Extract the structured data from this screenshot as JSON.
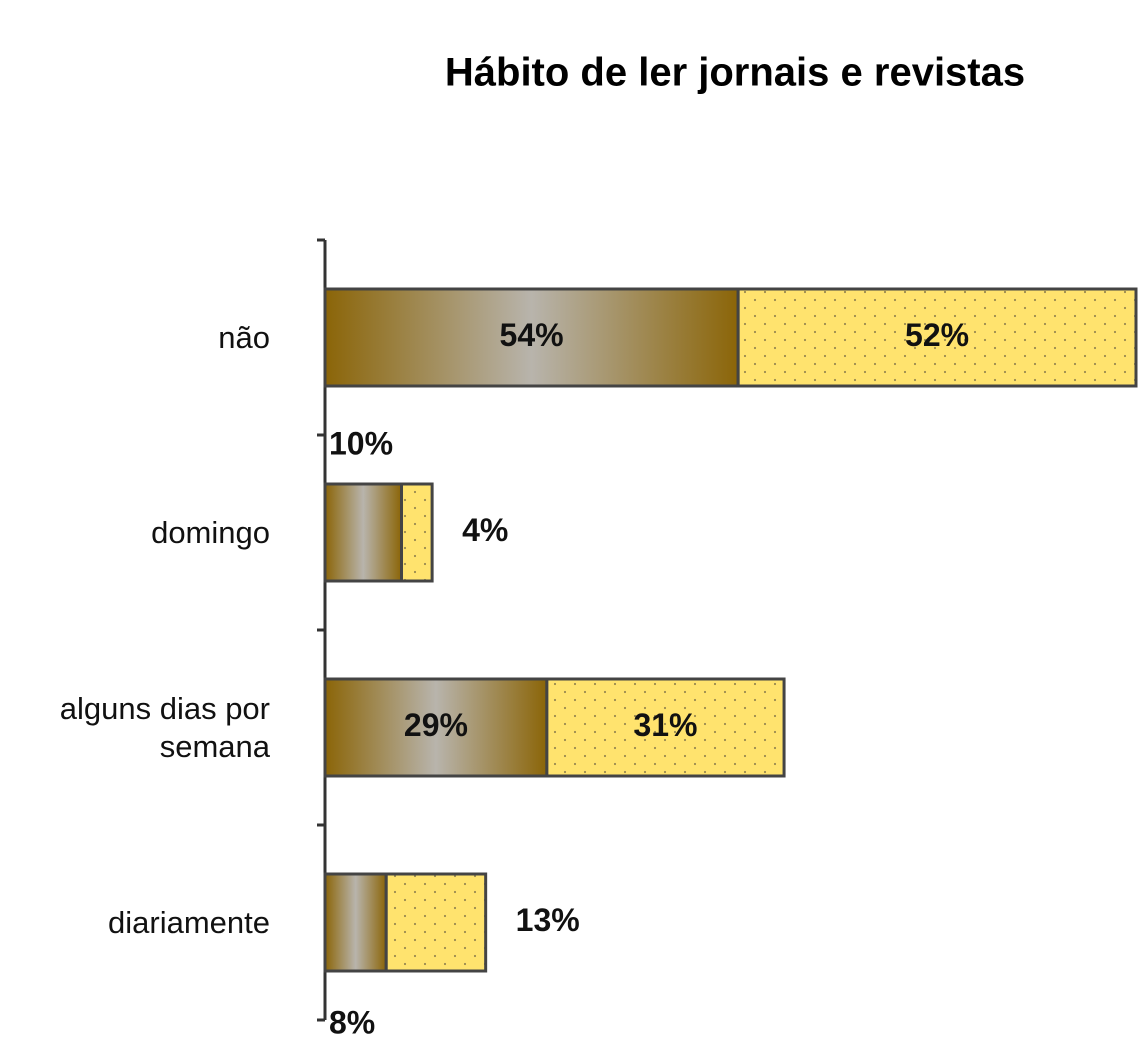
{
  "chart_data": {
    "type": "bar",
    "orientation": "horizontal",
    "stacked": true,
    "title": "Hábito de ler jornais e revistas",
    "categories": [
      "não",
      "domingo",
      "alguns dias por semana",
      "diariamente"
    ],
    "series": [
      {
        "color": "#8b6508",
        "values": [
          54,
          10,
          29,
          8
        ],
        "value_labels": [
          "54%",
          "10%",
          "29%",
          "8%"
        ]
      },
      {
        "color": "#ffe36e",
        "values": [
          52,
          4,
          31,
          13
        ],
        "value_labels": [
          "52%",
          "4%",
          "31%",
          "13%"
        ]
      }
    ],
    "xlim": [
      0,
      106
    ]
  }
}
